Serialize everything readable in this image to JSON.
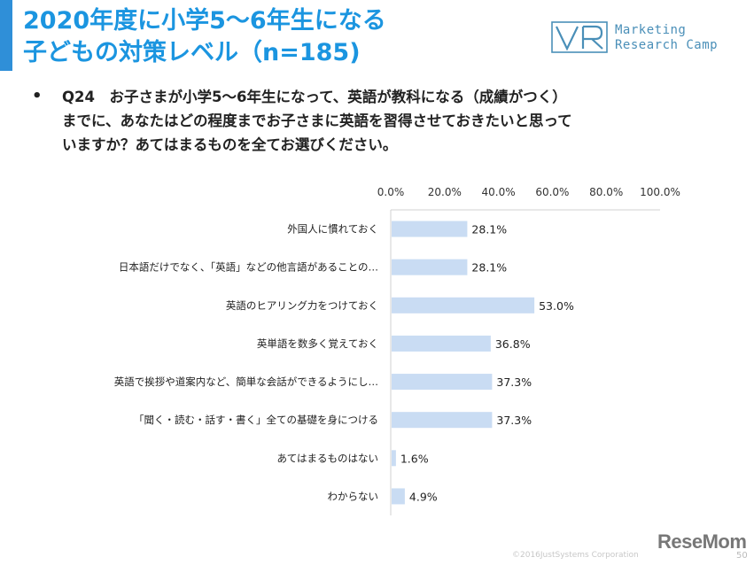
{
  "header": {
    "title_line1": "2020年度に小学5～6年生になる",
    "title_line2": "子どもの対策レベル（n=185)",
    "logo_line1": "Marketing",
    "logo_line2": "Research Camp"
  },
  "question": {
    "bullet": "•",
    "text": "Q24　お子さまが小学5～6年生になって、英語が教科になる（成績がつく）\nまでに、あなたはどの程度までお子さまに英語を習得させておきたいと思って\nいますか？あてはまるものを全てお選びください。"
  },
  "colors": {
    "title": "#1b95e0",
    "accent": "#2f8fd8",
    "bar": "#c9dcf3"
  },
  "chart_data": {
    "type": "bar",
    "orientation": "horizontal",
    "x_ticks": [
      "0.0%",
      "20.0%",
      "40.0%",
      "60.0%",
      "80.0%",
      "100.0%"
    ],
    "xlim": [
      0,
      100
    ],
    "grid": false,
    "categories": [
      "外国人に慣れておく",
      "日本語だけでなく、「英語」などの他言語があることの…",
      "英語のヒアリング力をつけておく",
      "英単語を数多く覚えておく",
      "英語で挨拶や道案内など、簡単な会話ができるようにし…",
      "「聞く・読む・話す・書く」全ての基礎を身につける",
      "あてはまるものはない",
      "わからない"
    ],
    "values": [
      28.1,
      28.1,
      53.0,
      36.8,
      37.3,
      37.3,
      1.6,
      4.9
    ],
    "labels": [
      "28.1%",
      "28.1%",
      "53.0%",
      "36.8%",
      "37.3%",
      "37.3%",
      "1.6%",
      "4.9%"
    ]
  },
  "footer": {
    "copyright": "©2016JustSystems Corporation",
    "brand": "ReseMom",
    "page": "50"
  }
}
